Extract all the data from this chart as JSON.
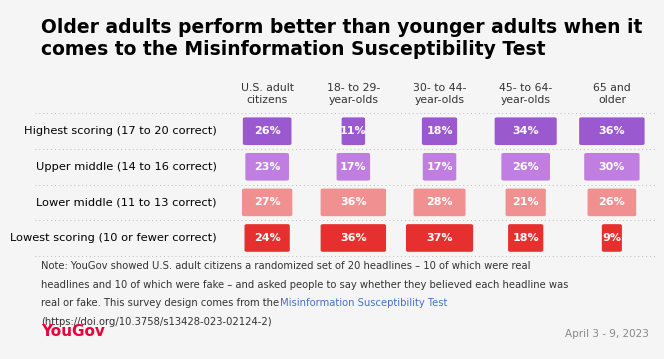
{
  "title": "Older adults perform better than younger adults when it\ncomes to the Misinformation Susceptibility Test",
  "col_headers": [
    "U.S. adult\ncitizens",
    "18- to 29-\nyear-olds",
    "30- to 44-\nyear-olds",
    "45- to 64-\nyear-olds",
    "65 and\nolder"
  ],
  "row_labels": [
    "Highest scoring (17 to 20 correct)",
    "Upper middle (14 to 16 correct)",
    "Lower middle (11 to 13 correct)",
    "Lowest scoring (10 or fewer correct)"
  ],
  "values": [
    [
      26,
      11,
      18,
      34,
      36
    ],
    [
      23,
      17,
      17,
      26,
      30
    ],
    [
      27,
      36,
      28,
      21,
      26
    ],
    [
      24,
      36,
      37,
      18,
      9
    ]
  ],
  "colors": [
    "#9b59d0",
    "#c07fe0",
    "#f09090",
    "#e63030"
  ],
  "background_color": "#f5f5f5",
  "note_text1": "Note: YouGov showed U.S. adult citizens a randomized set of 20 headlines – 10 of which were real",
  "note_text2": "headlines and 10 of which were fake – and asked people to say whether they believed each headline was",
  "note_text3": "real or fake. This survey design comes from the ",
  "note_link_text": "Misinformation Susceptibility Test",
  "note_url_text": "(https://doi.org/10.3758/s13428-023-02124-2)",
  "date_text": "April 3 - 9, 2023",
  "yougov_color": "#e8003d",
  "link_color": "#4472c4",
  "title_fontsize": 13.5,
  "col_header_fontsize": 7.8,
  "row_label_fontsize": 8.2,
  "value_fontsize": 8.0,
  "note_fontsize": 7.2,
  "yougov_fontsize": 11.0,
  "date_fontsize": 7.5
}
